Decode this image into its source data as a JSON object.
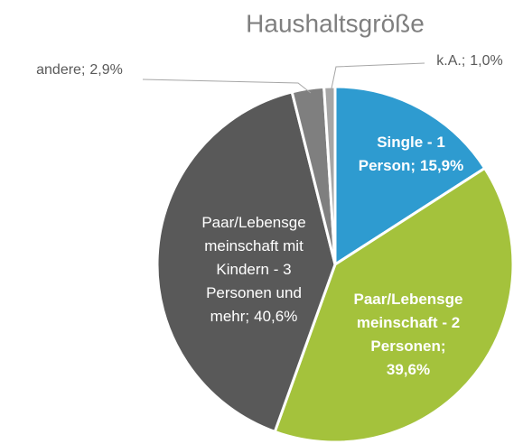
{
  "chart_data": {
    "type": "pie",
    "title": "Haushaltsgröße",
    "categories": [
      "Single - 1 Person;",
      "Paar/Lebensgemeinschaft - 2 Personen;",
      "Paar/Lebensgemeinschaft mit Kindern - 3 Personen und mehr;",
      "andere;",
      "k.A.;"
    ],
    "values": [
      15.9,
      39.6,
      40.6,
      2.9,
      1.0
    ],
    "value_labels": [
      "15,9%",
      "39,6%",
      "40,6%",
      "2,9%",
      "1,0%"
    ],
    "colors": [
      "#2e9bd0",
      "#a4c23c",
      "#595959",
      "#7f7f7f",
      "#a6a6a6"
    ]
  }
}
